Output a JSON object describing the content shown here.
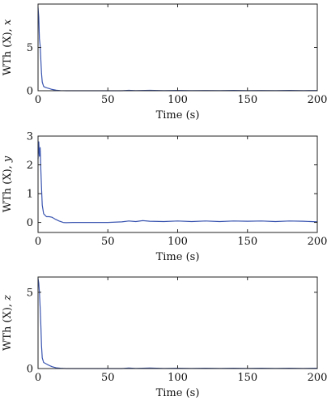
{
  "colors": {
    "series": "#3a55b0",
    "axis": "#222222"
  },
  "chart_data": [
    {
      "type": "line",
      "xlabel": "Time (s)",
      "ylabel": "WTh (X), x",
      "xlim": [
        0,
        200
      ],
      "ylim": [
        0,
        10
      ],
      "xticks": [
        0,
        50,
        100,
        150,
        200
      ],
      "yticks": [
        0,
        5
      ],
      "grid": false,
      "series": [
        {
          "x": [
            0,
            0.5,
            1,
            1.5,
            2,
            2.5,
            3,
            4,
            5,
            6,
            8,
            10,
            13,
            16,
            20,
            25,
            30,
            40,
            50,
            60,
            65,
            70,
            80,
            90,
            100,
            110,
            120,
            130,
            140,
            150,
            160,
            170,
            180,
            190,
            200
          ],
          "y": [
            9.6,
            8.5,
            6.0,
            5.2,
            3.5,
            2.0,
            1.0,
            0.5,
            0.4,
            0.35,
            0.25,
            0.15,
            0.06,
            0.02,
            0.0,
            0.0,
            0.0,
            0.0,
            0.0,
            0.0,
            0.05,
            0.02,
            0.05,
            0.02,
            0.04,
            0.02,
            0.03,
            0.02,
            0.04,
            0.02,
            0.03,
            0.02,
            0.04,
            0.02,
            0.03
          ]
        }
      ]
    },
    {
      "type": "line",
      "xlabel": "Time (s)",
      "ylabel": "WTh (X), y",
      "xlim": [
        0,
        200
      ],
      "ylim": [
        -0.35,
        3
      ],
      "xticks": [
        0,
        50,
        100,
        150,
        200
      ],
      "yticks": [
        0,
        1,
        2,
        3
      ],
      "grid": false,
      "series": [
        {
          "x": [
            0,
            0.5,
            1,
            1.5,
            2,
            2.5,
            3,
            4,
            5,
            6,
            8,
            10,
            12,
            15,
            18,
            20,
            25,
            30,
            40,
            50,
            60,
            65,
            70,
            75,
            80,
            90,
            100,
            110,
            120,
            130,
            140,
            150,
            160,
            170,
            180,
            190,
            200
          ],
          "y": [
            2.2,
            2.8,
            2.3,
            2.6,
            1.8,
            1.2,
            0.6,
            0.3,
            0.25,
            0.2,
            0.2,
            0.18,
            0.12,
            0.05,
            0.0,
            -0.01,
            0.0,
            0.0,
            0.0,
            0.0,
            0.02,
            0.05,
            0.03,
            0.06,
            0.04,
            0.03,
            0.05,
            0.03,
            0.05,
            0.03,
            0.05,
            0.04,
            0.05,
            0.03,
            0.05,
            0.04,
            0.02
          ]
        }
      ]
    },
    {
      "type": "line",
      "xlabel": "Time (s)",
      "ylabel": "WTh (X), z",
      "xlim": [
        0,
        200
      ],
      "ylim": [
        0,
        6
      ],
      "xticks": [
        0,
        50,
        100,
        150,
        200
      ],
      "yticks": [
        0,
        5
      ],
      "grid": false,
      "series": [
        {
          "x": [
            0,
            0.5,
            1,
            1.5,
            2,
            2.5,
            3,
            4,
            5,
            6,
            8,
            10,
            13,
            16,
            20,
            25,
            30,
            40,
            50,
            60,
            65,
            70,
            80,
            90,
            100,
            110,
            120,
            130,
            140,
            150,
            160,
            170,
            180,
            190,
            200
          ],
          "y": [
            5.9,
            5.6,
            5.0,
            4.0,
            2.8,
            1.5,
            0.7,
            0.4,
            0.35,
            0.3,
            0.2,
            0.12,
            0.05,
            0.02,
            0.0,
            0.0,
            0.0,
            0.0,
            0.0,
            0.0,
            0.03,
            0.01,
            0.03,
            0.01,
            0.02,
            0.01,
            0.02,
            0.01,
            0.02,
            0.01,
            0.02,
            0.01,
            0.02,
            0.01,
            0.02
          ]
        }
      ]
    }
  ]
}
